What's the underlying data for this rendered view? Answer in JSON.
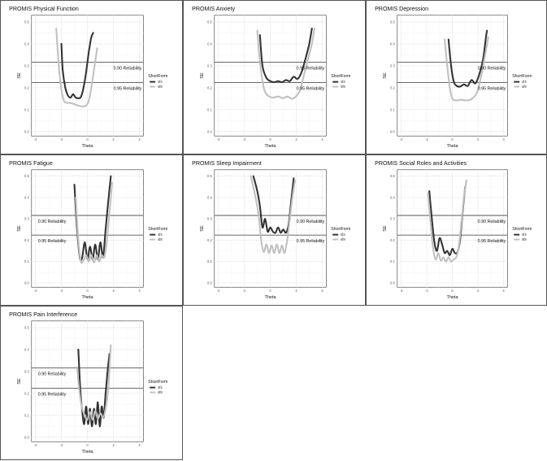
{
  "chart_data": [
    {
      "type": "line",
      "title": "PROMIS Physical Function",
      "xlabel": "Theta",
      "ylabel": "SE",
      "xlim": [
        -4.3,
        4.3
      ],
      "ylim": [
        -0.02,
        0.53
      ],
      "xticks": [
        "-4",
        "-2",
        "0",
        "2",
        "4"
      ],
      "xtick_values": [
        -4,
        -2,
        0,
        2,
        4
      ],
      "yticks": [
        "0.0",
        "0.1",
        "0.2",
        "0.3",
        "0.4",
        "0.5"
      ],
      "ytick_values": [
        0,
        0.1,
        0.2,
        0.3,
        0.4,
        0.5
      ],
      "grid": true,
      "legend": {
        "title": "ShortForm",
        "position": "right"
      },
      "reference_lines": [
        {
          "label": "0.90 Reliability",
          "y": 0.316
        },
        {
          "label": "0.95 Reliability",
          "y": 0.224
        }
      ],
      "series": [
        {
          "name": "sf4",
          "color": "#333333",
          "x": [
            -2.0,
            -1.9,
            -1.7,
            -1.5,
            -1.3,
            -1.1,
            -0.9,
            -0.7,
            -0.5,
            -0.3,
            -0.1,
            0.1,
            0.3,
            0.45
          ],
          "y": [
            0.4,
            0.28,
            0.2,
            0.165,
            0.155,
            0.17,
            0.155,
            0.152,
            0.158,
            0.2,
            0.27,
            0.36,
            0.43,
            0.45
          ]
        },
        {
          "name": "sf8",
          "color": "#c0c0c0",
          "x": [
            -2.4,
            -2.2,
            -2.0,
            -1.8,
            -1.6,
            -1.3,
            -1.0,
            -0.7,
            -0.4,
            -0.1,
            0.1,
            0.3,
            0.5,
            0.75
          ],
          "y": [
            0.47,
            0.3,
            0.19,
            0.14,
            0.132,
            0.13,
            0.125,
            0.118,
            0.115,
            0.118,
            0.14,
            0.2,
            0.28,
            0.38
          ]
        }
      ]
    },
    {
      "type": "line",
      "title": "PROMIS Anxiety",
      "xlabel": "Theta",
      "ylabel": "SE",
      "xlim": [
        -4.3,
        4.3
      ],
      "ylim": [
        -0.02,
        0.53
      ],
      "xticks": [
        "-4",
        "-2",
        "0",
        "2",
        "4"
      ],
      "xtick_values": [
        -4,
        -2,
        0,
        2,
        4
      ],
      "yticks": [
        "0.0",
        "0.1",
        "0.2",
        "0.3",
        "0.4",
        "0.5"
      ],
      "ytick_values": [
        0,
        0.1,
        0.2,
        0.3,
        0.4,
        0.5
      ],
      "grid": true,
      "legend": {
        "title": "ShortForm",
        "position": "right"
      },
      "reference_lines": [
        {
          "label": "0.90 Reliability",
          "y": 0.316
        },
        {
          "label": "0.95 Reliability",
          "y": 0.224
        }
      ],
      "series": [
        {
          "name": "sf4",
          "color": "#333333",
          "x": [
            -0.8,
            -0.6,
            -0.3,
            0.0,
            0.3,
            0.6,
            0.9,
            1.2,
            1.5,
            1.8,
            2.1,
            2.4,
            2.7,
            3.0,
            3.2
          ],
          "y": [
            0.44,
            0.3,
            0.245,
            0.23,
            0.225,
            0.23,
            0.225,
            0.235,
            0.23,
            0.25,
            0.24,
            0.27,
            0.33,
            0.4,
            0.47
          ]
        },
        {
          "name": "sf8",
          "color": "#c0c0c0",
          "x": [
            -1.0,
            -0.8,
            -0.5,
            -0.2,
            0.2,
            0.6,
            1.0,
            1.3,
            1.7,
            2.0,
            2.3,
            2.6,
            2.9,
            3.2,
            3.4
          ],
          "y": [
            0.46,
            0.32,
            0.2,
            0.165,
            0.155,
            0.16,
            0.152,
            0.16,
            0.15,
            0.162,
            0.19,
            0.26,
            0.33,
            0.4,
            0.47
          ]
        }
      ]
    },
    {
      "type": "line",
      "title": "PROMIS Depression",
      "xlabel": "Theta",
      "ylabel": "SE",
      "xlim": [
        -4.3,
        4.3
      ],
      "ylim": [
        -0.02,
        0.53
      ],
      "xticks": [
        "-4",
        "-2",
        "0",
        "2",
        "4"
      ],
      "xtick_values": [
        -4,
        -2,
        0,
        2,
        4
      ],
      "yticks": [
        "0.0",
        "0.1",
        "0.2",
        "0.3",
        "0.4",
        "0.5"
      ],
      "ytick_values": [
        0,
        0.1,
        0.2,
        0.3,
        0.4,
        0.5
      ],
      "grid": true,
      "legend": {
        "title": "ShortForm",
        "position": "right"
      },
      "reference_lines": [
        {
          "label": "0.90 Reliability",
          "y": 0.316
        },
        {
          "label": "0.95 Reliability",
          "y": 0.224
        }
      ],
      "series": [
        {
          "name": "sf4",
          "color": "#333333",
          "x": [
            -0.3,
            -0.1,
            0.1,
            0.3,
            0.6,
            0.9,
            1.2,
            1.5,
            1.8,
            2.1,
            2.4,
            2.6,
            2.7
          ],
          "y": [
            0.42,
            0.3,
            0.23,
            0.21,
            0.205,
            0.215,
            0.208,
            0.235,
            0.22,
            0.26,
            0.33,
            0.42,
            0.46
          ]
        },
        {
          "name": "sf8",
          "color": "#c0c0c0",
          "x": [
            -0.6,
            -0.4,
            -0.2,
            0.0,
            0.3,
            0.7,
            1.1,
            1.5,
            1.9,
            2.2,
            2.5,
            2.8
          ],
          "y": [
            0.42,
            0.3,
            0.2,
            0.15,
            0.142,
            0.145,
            0.142,
            0.148,
            0.175,
            0.24,
            0.33,
            0.43
          ]
        }
      ]
    },
    {
      "type": "line",
      "title": "PROMIS Fatigue",
      "xlabel": "Theta",
      "ylabel": "SE",
      "xlim": [
        -4.3,
        4.3
      ],
      "ylim": [
        -0.02,
        0.53
      ],
      "xticks": [
        "-4",
        "-2",
        "0",
        "2",
        "4"
      ],
      "xtick_values": [
        -4,
        -2,
        0,
        2,
        4
      ],
      "yticks": [
        "0.0",
        "0.1",
        "0.2",
        "0.3",
        "0.4",
        "0.5"
      ],
      "ytick_values": [
        0,
        0.1,
        0.2,
        0.3,
        0.4,
        0.5
      ],
      "grid": true,
      "legend": {
        "title": "ShortForm",
        "position": "right"
      },
      "reference_lines": [
        {
          "label": "0.90 Reliability",
          "y": 0.316
        },
        {
          "label": "0.95 Reliability",
          "y": 0.224
        }
      ],
      "series": [
        {
          "name": "sf4",
          "color": "#333333",
          "x": [
            -1.0,
            -0.85,
            -0.7,
            -0.55,
            -0.4,
            -0.2,
            0.0,
            0.2,
            0.4,
            0.6,
            0.8,
            1.0,
            1.2,
            1.4,
            1.6,
            1.8
          ],
          "y": [
            0.46,
            0.3,
            0.18,
            0.11,
            0.12,
            0.19,
            0.11,
            0.17,
            0.11,
            0.18,
            0.11,
            0.19,
            0.12,
            0.25,
            0.38,
            0.5
          ]
        },
        {
          "name": "sf8",
          "color": "#c0c0c0",
          "x": [
            -0.9,
            -0.7,
            -0.5,
            -0.3,
            -0.1,
            0.1,
            0.3,
            0.5,
            0.7,
            0.9,
            1.1,
            1.3,
            1.5,
            1.7,
            1.9
          ],
          "y": [
            0.4,
            0.2,
            0.1,
            0.105,
            0.13,
            0.1,
            0.13,
            0.095,
            0.13,
            0.1,
            0.13,
            0.12,
            0.2,
            0.33,
            0.47
          ]
        }
      ]
    },
    {
      "type": "line",
      "title": "PROMIS Sleep Impairment",
      "xlabel": "Theta",
      "ylabel": "SE",
      "xlim": [
        -4.3,
        4.3
      ],
      "ylim": [
        -0.02,
        0.53
      ],
      "xticks": [
        "-4",
        "-2",
        "0",
        "2",
        "4"
      ],
      "xtick_values": [
        -4,
        -2,
        0,
        2,
        4
      ],
      "yticks": [
        "0.0",
        "0.1",
        "0.2",
        "0.3",
        "0.4",
        "0.5"
      ],
      "ytick_values": [
        0,
        0.1,
        0.2,
        0.3,
        0.4,
        0.5
      ],
      "grid": true,
      "legend": {
        "title": "ShortForm",
        "position": "right"
      },
      "reference_lines": [
        {
          "label": "0.90 Reliability",
          "y": 0.316
        },
        {
          "label": "0.95 Reliability",
          "y": 0.224
        }
      ],
      "series": [
        {
          "name": "sf4",
          "color": "#333333",
          "x": [
            -1.3,
            -1.0,
            -0.8,
            -0.6,
            -0.4,
            -0.2,
            0.0,
            0.2,
            0.4,
            0.6,
            0.8,
            1.0,
            1.2,
            1.4,
            1.6,
            1.8
          ],
          "y": [
            0.5,
            0.43,
            0.36,
            0.26,
            0.3,
            0.24,
            0.26,
            0.24,
            0.235,
            0.26,
            0.235,
            0.25,
            0.235,
            0.27,
            0.38,
            0.49
          ]
        },
        {
          "name": "sf8",
          "color": "#c0c0c0",
          "x": [
            -1.5,
            -1.2,
            -0.9,
            -0.7,
            -0.5,
            -0.3,
            -0.1,
            0.1,
            0.3,
            0.5,
            0.7,
            0.9,
            1.1,
            1.3,
            1.5,
            1.7,
            1.9
          ],
          "y": [
            0.5,
            0.42,
            0.32,
            0.2,
            0.145,
            0.18,
            0.14,
            0.175,
            0.14,
            0.18,
            0.14,
            0.175,
            0.14,
            0.2,
            0.3,
            0.4,
            0.48
          ]
        }
      ]
    },
    {
      "type": "line",
      "title": "PROMIS Social Roles and Activities",
      "xlabel": "Theta",
      "ylabel": "SE",
      "xlim": [
        -4.3,
        4.3
      ],
      "ylim": [
        -0.02,
        0.53
      ],
      "xticks": [
        "-4",
        "-2",
        "0",
        "2",
        "4"
      ],
      "xtick_values": [
        -4,
        -2,
        0,
        2,
        4
      ],
      "yticks": [
        "0.0",
        "0.1",
        "0.2",
        "0.3",
        "0.4",
        "0.5"
      ],
      "ytick_values": [
        0,
        0.1,
        0.2,
        0.3,
        0.4,
        0.5
      ],
      "grid": true,
      "legend": {
        "title": "ShortForm",
        "position": "right"
      },
      "reference_lines": [
        {
          "label": "0.90 Reliability",
          "y": 0.316
        },
        {
          "label": "0.95 Reliability",
          "y": 0.224
        }
      ],
      "series": [
        {
          "name": "sf4",
          "color": "#333333",
          "x": [
            -1.8,
            -1.6,
            -1.4,
            -1.2,
            -1.0,
            -0.8,
            -0.6,
            -0.4,
            -0.2,
            0.0,
            0.2,
            0.4,
            0.6,
            0.8,
            1.0
          ],
          "y": [
            0.43,
            0.3,
            0.19,
            0.15,
            0.21,
            0.18,
            0.14,
            0.15,
            0.13,
            0.16,
            0.14,
            0.145,
            0.2,
            0.33,
            0.45
          ]
        },
        {
          "name": "sf8",
          "color": "#c0c0c0",
          "x": [
            -1.9,
            -1.7,
            -1.5,
            -1.3,
            -1.1,
            -0.9,
            -0.7,
            -0.5,
            -0.3,
            -0.1,
            0.1,
            0.3,
            0.5,
            0.7,
            0.9,
            1.1
          ],
          "y": [
            0.42,
            0.28,
            0.16,
            0.11,
            0.14,
            0.105,
            0.12,
            0.1,
            0.12,
            0.1,
            0.11,
            0.12,
            0.17,
            0.28,
            0.4,
            0.48
          ]
        }
      ]
    },
    {
      "type": "line",
      "title": "PROMIS Pain Interference",
      "xlabel": "Theta",
      "ylabel": "SE",
      "xlim": [
        -4.3,
        4.3
      ],
      "ylim": [
        -0.02,
        0.53
      ],
      "xticks": [
        "-4",
        "-2",
        "0",
        "2",
        "4"
      ],
      "xtick_values": [
        -4,
        -2,
        0,
        2,
        4
      ],
      "yticks": [
        "0.0",
        "0.1",
        "0.2",
        "0.3",
        "0.4",
        "0.5"
      ],
      "ytick_values": [
        0,
        0.1,
        0.2,
        0.3,
        0.4,
        0.5
      ],
      "grid": true,
      "legend": {
        "title": "ShortForm",
        "position": "right"
      },
      "reference_lines": [
        {
          "label": "0.90 Reliability",
          "y": 0.316
        },
        {
          "label": "0.95 Reliability",
          "y": 0.224
        }
      ],
      "series": [
        {
          "name": "sf4",
          "color": "#333333",
          "x": [
            -0.7,
            -0.55,
            -0.4,
            -0.25,
            -0.1,
            0.05,
            0.2,
            0.35,
            0.5,
            0.65,
            0.8,
            0.95,
            1.1,
            1.25,
            1.4,
            1.55,
            1.7
          ],
          "y": [
            0.4,
            0.22,
            0.12,
            0.06,
            0.14,
            0.06,
            0.13,
            0.05,
            0.13,
            0.06,
            0.16,
            0.05,
            0.14,
            0.09,
            0.2,
            0.3,
            0.38
          ]
        },
        {
          "name": "sf8",
          "color": "#c0c0c0",
          "x": [
            -0.8,
            -0.6,
            -0.4,
            -0.2,
            0.0,
            0.2,
            0.4,
            0.6,
            0.8,
            1.0,
            1.2,
            1.4,
            1.6,
            1.8
          ],
          "y": [
            0.32,
            0.2,
            0.13,
            0.1,
            0.08,
            0.115,
            0.08,
            0.12,
            0.085,
            0.11,
            0.09,
            0.13,
            0.22,
            0.42
          ]
        }
      ]
    }
  ]
}
